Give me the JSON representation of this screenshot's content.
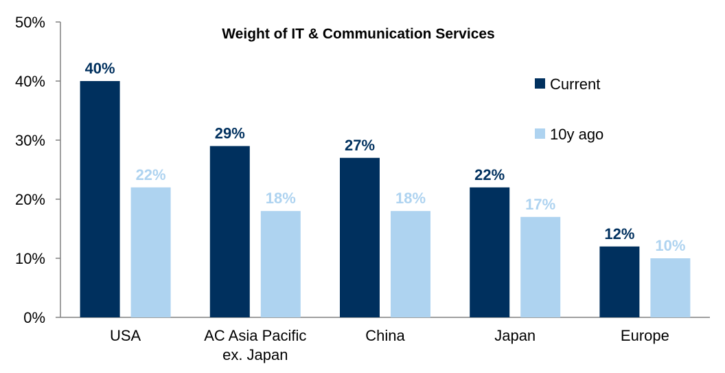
{
  "chart_data": {
    "type": "bar",
    "title": "Weight of IT & Communication Services",
    "xlabel": "",
    "ylabel": "",
    "categories": [
      "USA",
      "AC Asia Pacific\nex. Japan",
      "China",
      "Japan",
      "Europe"
    ],
    "series": [
      {
        "name": "Current",
        "values": [
          40,
          29,
          27,
          22,
          12
        ],
        "labels": [
          "40%",
          "29%",
          "27%",
          "22%",
          "12%"
        ],
        "color": "#00305e"
      },
      {
        "name": "10y ago",
        "values": [
          22,
          18,
          18,
          17,
          10
        ],
        "labels": [
          "22%",
          "18%",
          "18%",
          "17%",
          "10%"
        ],
        "color": "#aed3f0"
      }
    ],
    "ylim": [
      0,
      50
    ],
    "yticks": [
      0,
      10,
      20,
      30,
      40,
      50
    ],
    "ytick_labels": [
      "0%",
      "10%",
      "20%",
      "30%",
      "40%",
      "50%"
    ],
    "grid": false,
    "legend_position": "right"
  }
}
